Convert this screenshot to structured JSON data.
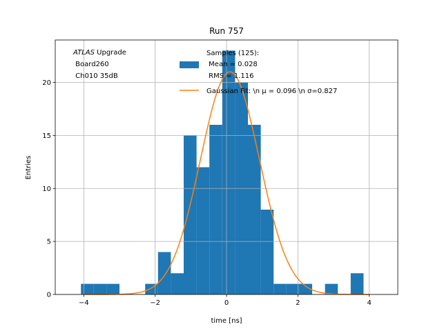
{
  "chart_data": {
    "type": "bar",
    "title": "Run 757",
    "xlabel": "time [ns]",
    "ylabel": "Entries",
    "xlim": [
      -4.8,
      4.8
    ],
    "ylim": [
      0,
      24
    ],
    "xticks": [
      -4,
      -2,
      0,
      2,
      4
    ],
    "yticks": [
      0,
      5,
      10,
      15,
      20
    ],
    "xtick_labels": [
      "−4",
      "−2",
      "0",
      "2",
      "4"
    ],
    "ytick_labels": [
      "0",
      "5",
      "10",
      "15",
      "20"
    ],
    "grid": true,
    "annotation": {
      "italic": "ATLAS",
      "line1_rest": " Upgrade",
      "line2": " Board260",
      "line3": " Ch010 35dB"
    },
    "histogram": {
      "color": "#1f77b4",
      "bins": [
        {
          "x0": -4.08,
          "x1": -3.72,
          "count": 1
        },
        {
          "x0": -3.72,
          "x1": -3.36,
          "count": 1
        },
        {
          "x0": -3.36,
          "x1": -3.0,
          "count": 1
        },
        {
          "x0": -2.28,
          "x1": -1.92,
          "count": 1
        },
        {
          "x0": -1.92,
          "x1": -1.56,
          "count": 4
        },
        {
          "x0": -1.56,
          "x1": -1.2,
          "count": 2
        },
        {
          "x0": -1.2,
          "x1": -0.84,
          "count": 15
        },
        {
          "x0": -0.84,
          "x1": -0.48,
          "count": 12
        },
        {
          "x0": -0.48,
          "x1": -0.12,
          "count": 16
        },
        {
          "x0": -0.12,
          "x1": 0.24,
          "count": 23
        },
        {
          "x0": 0.24,
          "x1": 0.6,
          "count": 20
        },
        {
          "x0": 0.6,
          "x1": 0.96,
          "count": 16
        },
        {
          "x0": 0.96,
          "x1": 1.32,
          "count": 8
        },
        {
          "x0": 1.32,
          "x1": 1.68,
          "count": 1
        },
        {
          "x0": 1.68,
          "x1": 2.04,
          "count": 1
        },
        {
          "x0": 2.04,
          "x1": 2.4,
          "count": 1
        },
        {
          "x0": 2.76,
          "x1": 3.12,
          "count": 1
        },
        {
          "x0": 3.48,
          "x1": 3.84,
          "count": 2
        }
      ]
    },
    "fit": {
      "color": "#ff7f0e",
      "amplitude": 21.0,
      "mu": 0.096,
      "sigma": 0.827,
      "x_range": [
        -4.0,
        4.0
      ]
    },
    "legend": {
      "placement": "top-center",
      "hist_lines": [
        "Samples (125):",
        " Mean = 0.028",
        " RMS = 1.116"
      ],
      "fit_label": "Gaussian Fit: \\n μ = 0.096 \\n σ=0.827"
    }
  }
}
